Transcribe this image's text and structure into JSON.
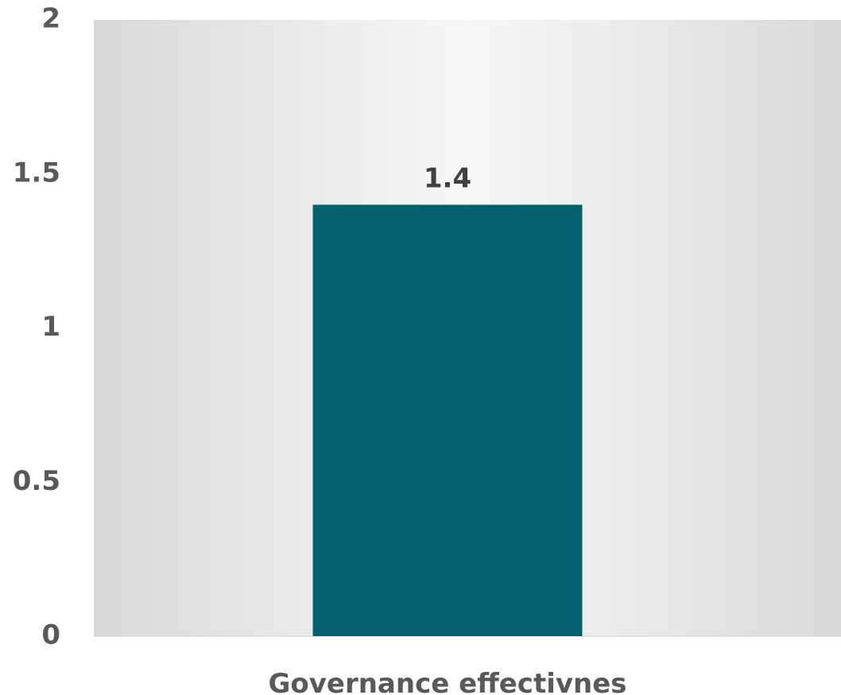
{
  "chart_data": {
    "type": "bar",
    "categories": [
      "Governance effectivnes"
    ],
    "values": [
      1.4
    ],
    "data_labels": [
      "1.4"
    ],
    "ylim": [
      0,
      2
    ],
    "y_ticks": [
      0,
      0.5,
      1,
      1.5,
      2
    ],
    "y_tick_labels": [
      "0",
      "0.5",
      "1",
      "1.5",
      "2"
    ],
    "grid": false,
    "legend": false
  },
  "colors": {
    "bar": "#03606f",
    "plot_edge": "#d9d9d9",
    "plot_center": "#f7f7f7",
    "axis_line": "#d9d9d9"
  }
}
